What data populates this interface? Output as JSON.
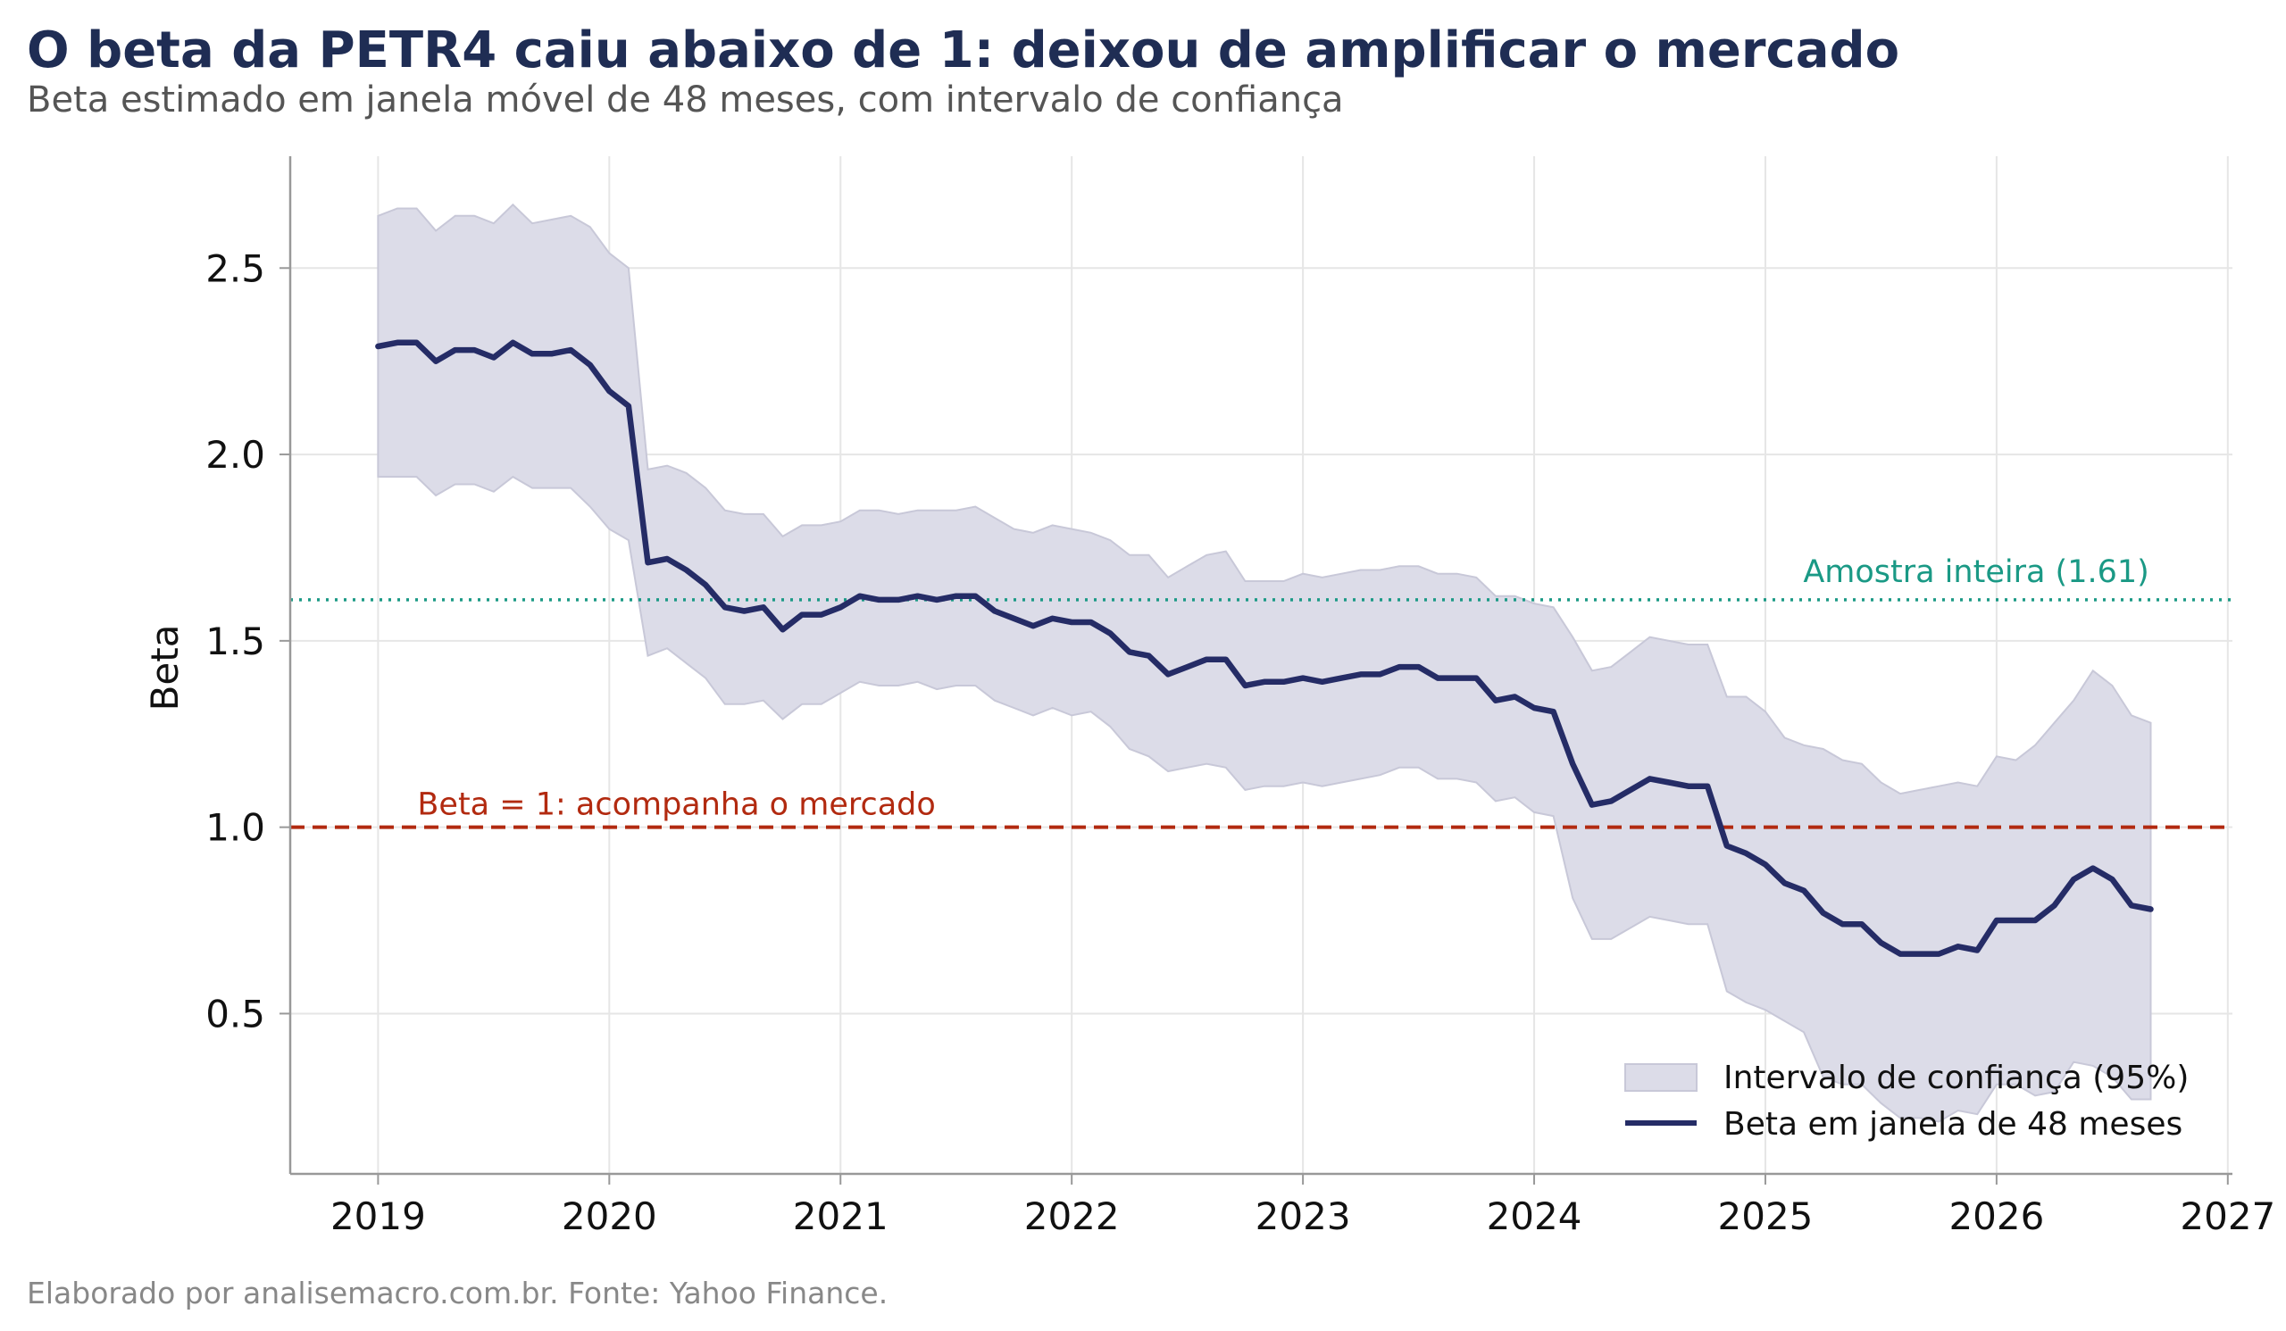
{
  "title": "O beta da PETR4 caiu abaixo de 1: deixou de amplificar o mercado",
  "subtitle": "Beta estimado em janela móvel de 48 meses, com intervalo de confiança",
  "caption": "Elaborado por analisemacro.com.br. Fonte: Yahoo Finance.",
  "colors": {
    "line": "#252c66",
    "band": "#dcdce8",
    "band_edge": "#c8c8d8",
    "ref_one": "#b22a10",
    "full_sample": "#1a9985",
    "grid": "#e6e6e6",
    "axis": "#999999",
    "title": "#1f2d54"
  },
  "chart_data": {
    "type": "line",
    "title": "O beta da PETR4 caiu abaixo de 1: deixou de amplificar o mercado",
    "subtitle": "Beta estimado em janela móvel de 48 meses, com intervalo de confiança",
    "xlabel": "",
    "ylabel": "Beta",
    "xlim": [
      2018.62,
      2027.02
    ],
    "ylim": [
      0.07,
      2.8
    ],
    "x_ticks": [
      "2019",
      "2020",
      "2021",
      "2022",
      "2023",
      "2024",
      "2025",
      "2026",
      "2027"
    ],
    "y_ticks": [
      "0.5",
      "1.0",
      "1.5",
      "2.0",
      "2.5"
    ],
    "grid": true,
    "legend_position": "bottom-right",
    "x": [
      2019.0,
      2019.0833,
      2019.1667,
      2019.25,
      2019.3333,
      2019.4167,
      2019.5,
      2019.5833,
      2019.6667,
      2019.75,
      2019.8333,
      2019.9167,
      2020.0,
      2020.0833,
      2020.1667,
      2020.25,
      2020.3333,
      2020.4167,
      2020.5,
      2020.5833,
      2020.6667,
      2020.75,
      2020.8333,
      2020.9167,
      2021.0,
      2021.0833,
      2021.1667,
      2021.25,
      2021.3333,
      2021.4167,
      2021.5,
      2021.5833,
      2021.6667,
      2021.75,
      2021.8333,
      2021.9167,
      2022.0,
      2022.0833,
      2022.1667,
      2022.25,
      2022.3333,
      2022.4167,
      2022.5,
      2022.5833,
      2022.6667,
      2022.75,
      2022.8333,
      2022.9167,
      2023.0,
      2023.0833,
      2023.1667,
      2023.25,
      2023.3333,
      2023.4167,
      2023.5,
      2023.5833,
      2023.6667,
      2023.75,
      2023.8333,
      2023.9167,
      2024.0,
      2024.0833,
      2024.1667,
      2024.25,
      2024.3333,
      2024.4167,
      2024.5,
      2024.5833,
      2024.6667,
      2024.75,
      2024.8333,
      2024.9167,
      2025.0,
      2025.0833,
      2025.1667,
      2025.25,
      2025.3333,
      2025.4167,
      2025.5,
      2025.5833,
      2025.6667,
      2025.75,
      2025.8333,
      2025.9167,
      2026.0,
      2026.0833,
      2026.1667,
      2026.25,
      2026.3333,
      2026.4167,
      2026.5,
      2026.5833,
      2026.6667
    ],
    "series": [
      {
        "name": "Beta em janela de 48 meses",
        "type": "line",
        "values": [
          2.29,
          2.3,
          2.3,
          2.25,
          2.28,
          2.28,
          2.26,
          2.3,
          2.27,
          2.27,
          2.28,
          2.24,
          2.17,
          2.13,
          1.71,
          1.72,
          1.69,
          1.65,
          1.59,
          1.58,
          1.59,
          1.53,
          1.57,
          1.57,
          1.59,
          1.62,
          1.61,
          1.61,
          1.62,
          1.61,
          1.62,
          1.62,
          1.58,
          1.56,
          1.54,
          1.56,
          1.55,
          1.55,
          1.52,
          1.47,
          1.46,
          1.41,
          1.43,
          1.45,
          1.45,
          1.38,
          1.39,
          1.39,
          1.4,
          1.39,
          1.4,
          1.41,
          1.41,
          1.43,
          1.43,
          1.4,
          1.4,
          1.4,
          1.34,
          1.35,
          1.32,
          1.31,
          1.17,
          1.06,
          1.07,
          1.1,
          1.13,
          1.12,
          1.11,
          1.11,
          0.95,
          0.93,
          0.9,
          0.85,
          0.83,
          0.77,
          0.74,
          0.74,
          0.69,
          0.66,
          0.66,
          0.66,
          0.68,
          0.67,
          0.75,
          0.75,
          0.75,
          0.79,
          0.86,
          0.89,
          0.86,
          0.79,
          0.78
        ]
      },
      {
        "name": "Intervalo de confiança (95%)",
        "type": "band",
        "upper": [
          2.64,
          2.66,
          2.66,
          2.6,
          2.64,
          2.64,
          2.62,
          2.67,
          2.62,
          2.63,
          2.64,
          2.61,
          2.54,
          2.5,
          1.96,
          1.97,
          1.95,
          1.91,
          1.85,
          1.84,
          1.84,
          1.78,
          1.81,
          1.81,
          1.82,
          1.85,
          1.85,
          1.84,
          1.85,
          1.85,
          1.85,
          1.86,
          1.83,
          1.8,
          1.79,
          1.81,
          1.8,
          1.79,
          1.77,
          1.73,
          1.73,
          1.67,
          1.7,
          1.73,
          1.74,
          1.66,
          1.66,
          1.66,
          1.68,
          1.67,
          1.68,
          1.69,
          1.69,
          1.7,
          1.7,
          1.68,
          1.68,
          1.67,
          1.62,
          1.62,
          1.6,
          1.59,
          1.51,
          1.42,
          1.43,
          1.47,
          1.51,
          1.5,
          1.49,
          1.49,
          1.35,
          1.35,
          1.31,
          1.24,
          1.22,
          1.21,
          1.18,
          1.17,
          1.12,
          1.09,
          1.1,
          1.11,
          1.12,
          1.11,
          1.19,
          1.18,
          1.22,
          1.28,
          1.34,
          1.42,
          1.38,
          1.3,
          1.28
        ],
        "lower": [
          1.94,
          1.94,
          1.94,
          1.89,
          1.92,
          1.92,
          1.9,
          1.94,
          1.91,
          1.91,
          1.91,
          1.86,
          1.8,
          1.77,
          1.46,
          1.48,
          1.44,
          1.4,
          1.33,
          1.33,
          1.34,
          1.29,
          1.33,
          1.33,
          1.36,
          1.39,
          1.38,
          1.38,
          1.39,
          1.37,
          1.38,
          1.38,
          1.34,
          1.32,
          1.3,
          1.32,
          1.3,
          1.31,
          1.27,
          1.21,
          1.19,
          1.15,
          1.16,
          1.17,
          1.16,
          1.1,
          1.11,
          1.11,
          1.12,
          1.11,
          1.12,
          1.13,
          1.14,
          1.16,
          1.16,
          1.13,
          1.13,
          1.12,
          1.07,
          1.08,
          1.04,
          1.03,
          0.81,
          0.7,
          0.7,
          0.73,
          0.76,
          0.75,
          0.74,
          0.74,
          0.56,
          0.53,
          0.51,
          0.48,
          0.45,
          0.33,
          0.31,
          0.31,
          0.26,
          0.22,
          0.22,
          0.21,
          0.24,
          0.23,
          0.31,
          0.31,
          0.28,
          0.29,
          0.37,
          0.36,
          0.33,
          0.27,
          0.27
        ]
      }
    ],
    "reference_lines": [
      {
        "y": 1.0,
        "label": "Beta = 1: acompanha o mercado",
        "style": "dashed"
      },
      {
        "y": 1.61,
        "label": "Amostra inteira (1.61)",
        "style": "dotted"
      }
    ],
    "legend": [
      "Intervalo de confiança (95%)",
      "Beta em janela de 48 meses"
    ]
  }
}
